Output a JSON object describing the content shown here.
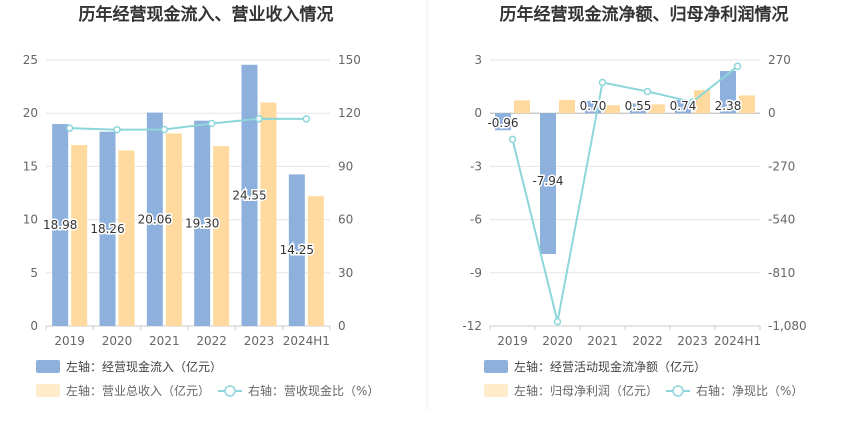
{
  "chart_data": [
    {
      "type": "bar",
      "title": "历年经营现金流入、营业收入情况",
      "categories": [
        "2019",
        "2020",
        "2021",
        "2022",
        "2023",
        "2024H1"
      ],
      "y_left": {
        "ticks": [
          "0",
          "5",
          "10",
          "15",
          "20",
          "25"
        ],
        "ylim": [
          0,
          25
        ]
      },
      "y_right": {
        "ticks": [
          "0",
          "30",
          "60",
          "90",
          "120",
          "150"
        ],
        "ylim": [
          0,
          150
        ]
      },
      "series": [
        {
          "name": "左轴：经营现金流入（亿元）",
          "kind": "bar",
          "axis": "left",
          "color": "#8eb0dc",
          "values": [
            18.98,
            18.26,
            20.06,
            19.3,
            24.55,
            14.25
          ],
          "labels": [
            "18.98",
            "18.26",
            "20.06",
            "19.30",
            "24.55",
            "14.25"
          ]
        },
        {
          "name": "左轴：营业总收入（亿元）",
          "kind": "bar",
          "axis": "left",
          "color": "#ffd99e",
          "values": [
            17.0,
            16.5,
            18.1,
            16.9,
            21.0,
            12.2
          ]
        },
        {
          "name": "右轴：营收现金比（%）",
          "kind": "line",
          "axis": "right",
          "color": "#8dd6da",
          "values": [
            111.6,
            110.7,
            110.8,
            114.2,
            116.9,
            116.8
          ]
        }
      ],
      "grid": true,
      "legend_position": "bottom-left"
    },
    {
      "type": "bar",
      "title": "历年经营现金流净额、归母净利润情况",
      "categories": [
        "2019",
        "2020",
        "2021",
        "2022",
        "2023",
        "2024H1"
      ],
      "y_left": {
        "ticks": [
          "-12",
          "-9",
          "-6",
          "-3",
          "0",
          "3"
        ],
        "ylim": [
          -12,
          3
        ]
      },
      "y_right": {
        "ticks": [
          "-1,080",
          "-810",
          "-540",
          "-270",
          "0",
          "270"
        ],
        "ylim": [
          -1080,
          270
        ]
      },
      "series": [
        {
          "name": "左轴：经营活动现金流净额（亿元）",
          "kind": "bar",
          "axis": "left",
          "color": "#8eb0dc",
          "values": [
            -0.96,
            -7.94,
            0.7,
            0.55,
            0.74,
            2.38
          ],
          "labels": [
            "-0.96",
            "-7.94",
            "0.70",
            "0.55",
            "0.74",
            "2.38"
          ]
        },
        {
          "name": "左轴：归母净利润（亿元）",
          "kind": "bar",
          "axis": "left",
          "color": "#ffd99e",
          "values": [
            0.72,
            0.75,
            0.45,
            0.5,
            1.3,
            1.0
          ]
        },
        {
          "name": "右轴：净现比（%）",
          "kind": "line",
          "axis": "right",
          "color": "#8dd6da",
          "values": [
            -133,
            -1058,
            156,
            110,
            57,
            238
          ]
        }
      ],
      "grid": true,
      "legend_position": "bottom-left"
    }
  ]
}
